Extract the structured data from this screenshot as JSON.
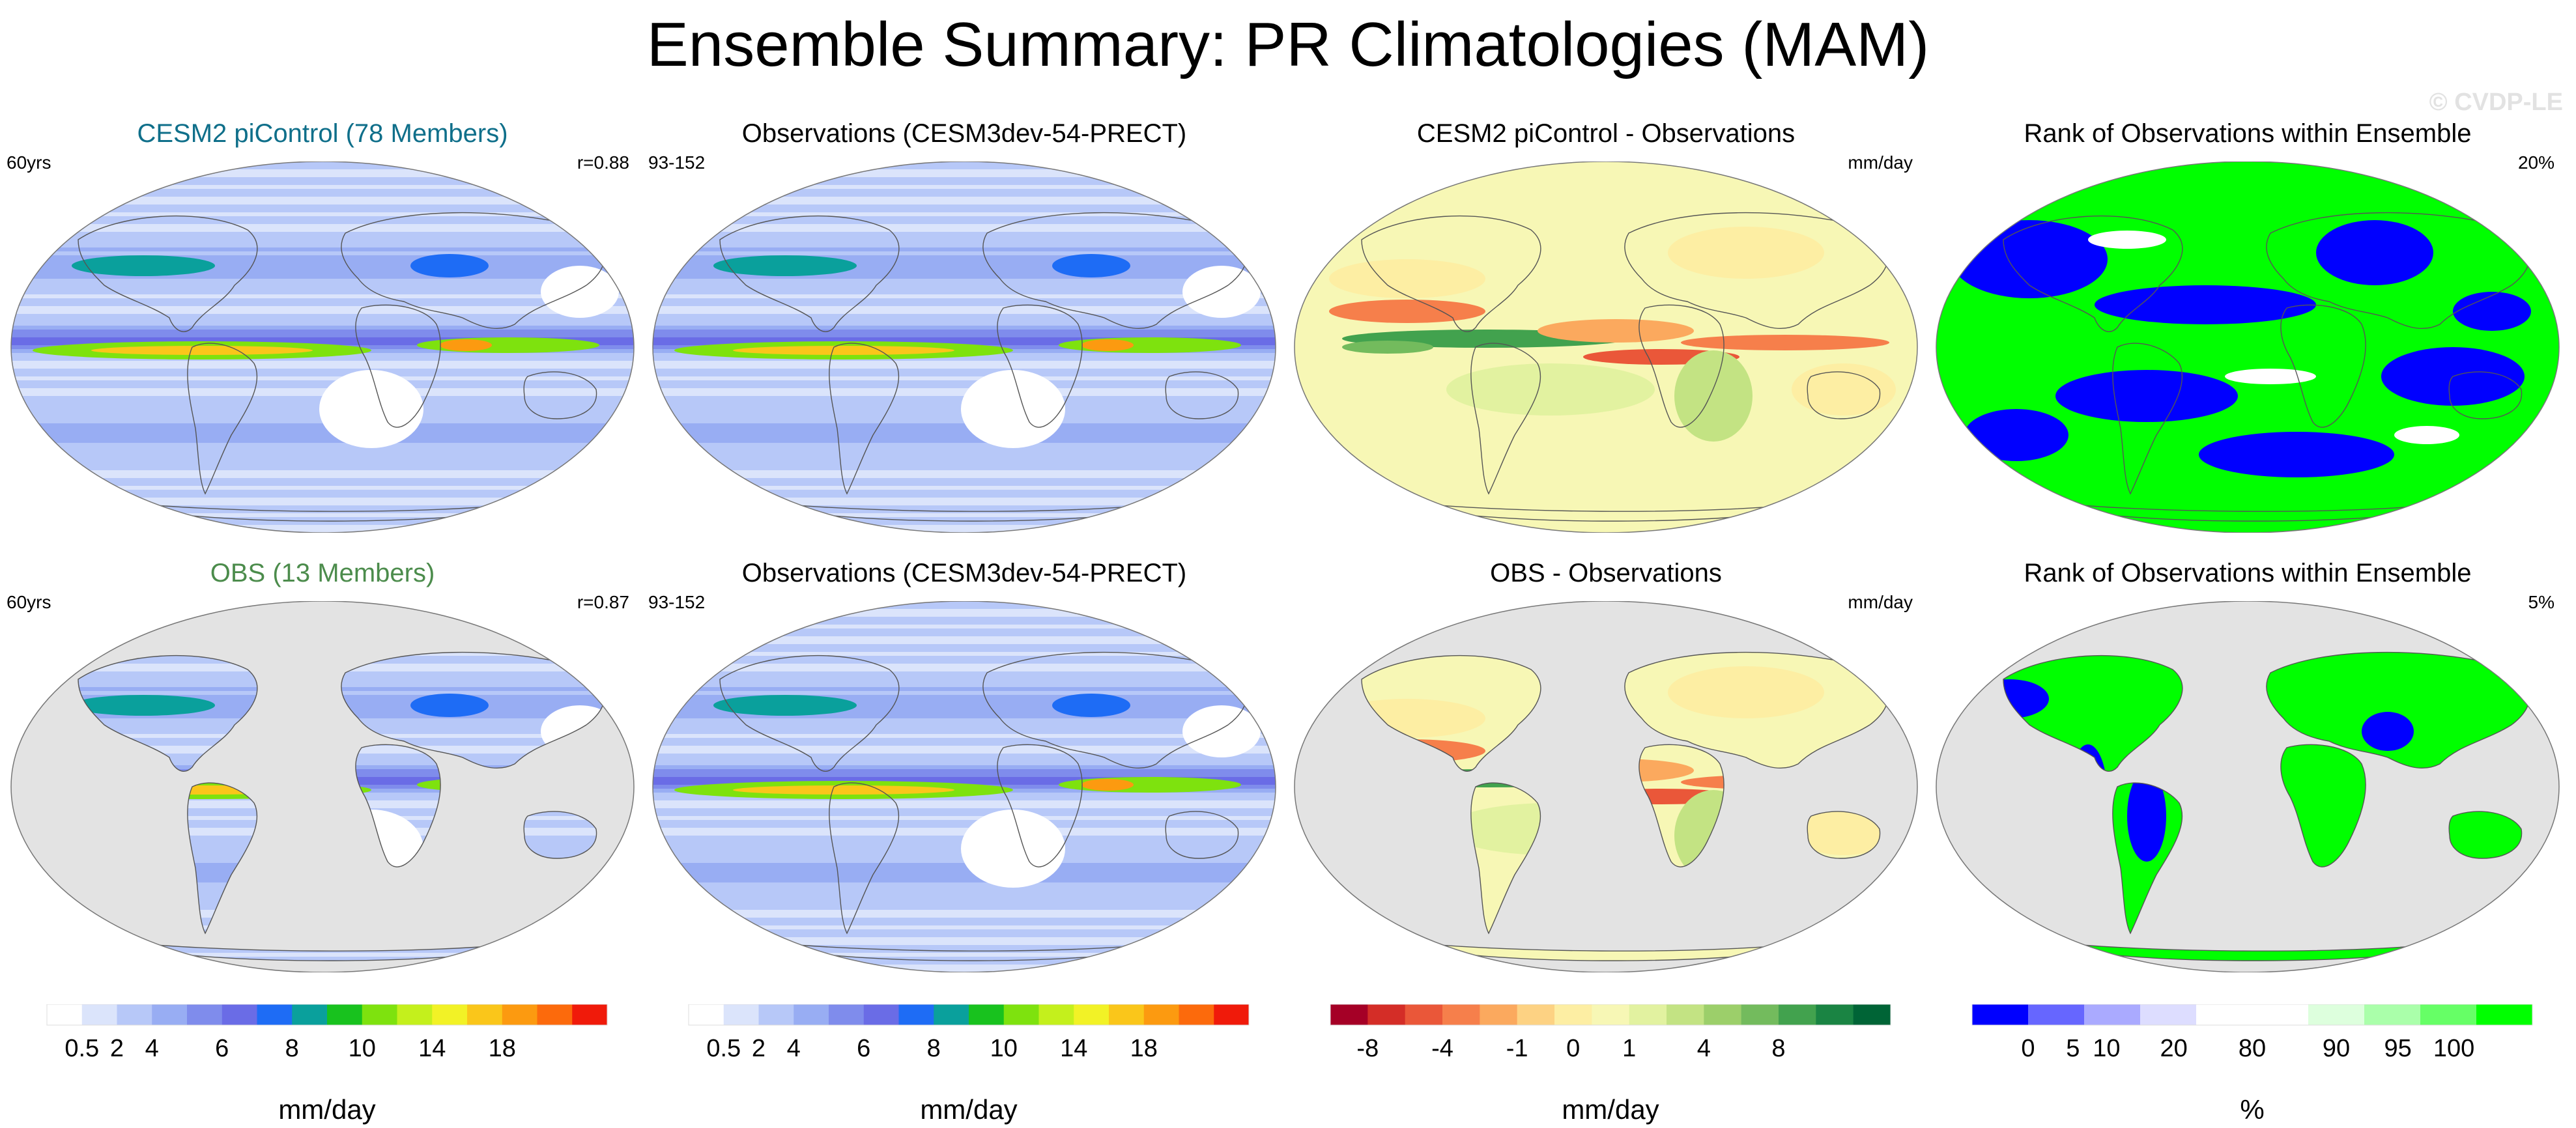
{
  "title": "Ensemble Summary: PR Climatologies (MAM)",
  "watermark": "© CVDP-LE",
  "colors": {
    "model_title": "#0f6f8a",
    "obs_title": "#4c8c4c"
  },
  "chart_data": [
    {
      "type": "map",
      "row": 1,
      "title": "CESM2 piControl (78 Members)",
      "title_color": "#0f6f8a",
      "left_note": "60yrs",
      "right_note": "r=0.88",
      "field": "precip",
      "coverage": "global"
    },
    {
      "type": "map",
      "row": 1,
      "title": "Observations (CESM3dev-54-PRECT)",
      "left_note": "93-152",
      "right_note": "",
      "field": "precip",
      "coverage": "global"
    },
    {
      "type": "map",
      "row": 1,
      "title": "CESM2 piControl - Observations",
      "left_note": "",
      "right_note": "mm/day",
      "field": "difference",
      "coverage": "global"
    },
    {
      "type": "map",
      "row": 1,
      "title": "Rank of Observations within Ensemble",
      "left_note": "",
      "right_note": "20%",
      "field": "rank",
      "coverage": "global"
    },
    {
      "type": "map",
      "row": 2,
      "title": "OBS (13 Members)",
      "title_color": "#4c8c4c",
      "left_note": "60yrs",
      "right_note": "r=0.87",
      "field": "precip",
      "coverage": "land"
    },
    {
      "type": "map",
      "row": 2,
      "title": "Observations (CESM3dev-54-PRECT)",
      "left_note": "93-152",
      "right_note": "",
      "field": "precip",
      "coverage": "global"
    },
    {
      "type": "map",
      "row": 2,
      "title": "OBS - Observations",
      "left_note": "",
      "right_note": "mm/day",
      "field": "difference",
      "coverage": "land"
    },
    {
      "type": "map",
      "row": 2,
      "title": "Rank of Observations within Ensemble",
      "left_note": "",
      "right_note": "5%",
      "field": "rank",
      "coverage": "land"
    }
  ],
  "colorbars": [
    {
      "label": "mm/day",
      "colors": [
        "#ffffff",
        "#dbe4fb",
        "#b7c8f8",
        "#98adf3",
        "#7f8cec",
        "#6a6ce6",
        "#1e6cf5",
        "#0aa09c",
        "#18c21e",
        "#7ee20e",
        "#c4f01c",
        "#f2f226",
        "#fac61a",
        "#fc9a10",
        "#fc6a0c",
        "#f01a0a"
      ],
      "ticks": [
        "0.5",
        "2",
        "4",
        "6",
        "8",
        "10",
        "14",
        "18"
      ]
    },
    {
      "label": "mm/day",
      "colors": [
        "#ffffff",
        "#dbe4fb",
        "#b7c8f8",
        "#98adf3",
        "#7f8cec",
        "#6a6ce6",
        "#1e6cf5",
        "#0aa09c",
        "#18c21e",
        "#7ee20e",
        "#c4f01c",
        "#f2f226",
        "#fac61a",
        "#fc9a10",
        "#fc6a0c",
        "#f01a0a"
      ],
      "ticks": [
        "0.5",
        "2",
        "4",
        "6",
        "8",
        "10",
        "14",
        "18"
      ]
    },
    {
      "label": "mm/day",
      "colors": [
        "#a50026",
        "#d42d27",
        "#ea5739",
        "#f67f4b",
        "#fba95e",
        "#fdd283",
        "#fdeea3",
        "#f7f7b5",
        "#e2f2a0",
        "#c3e383",
        "#9ccf6a",
        "#73bb5d",
        "#42a24e",
        "#1a8443",
        "#006436"
      ],
      "ticks": [
        "-8",
        "-4",
        "-1",
        "0",
        "1",
        "4",
        "8"
      ]
    },
    {
      "label": "%",
      "colors": [
        "#0000ff",
        "#6666ff",
        "#aaaaff",
        "#ddddff",
        "#ffffff",
        "#ffffff",
        "#ddffdd",
        "#aaffaa",
        "#66ff66",
        "#00ff00"
      ],
      "ticks": [
        "0",
        "5",
        "10",
        "20",
        "80",
        "90",
        "95",
        "100"
      ]
    }
  ]
}
